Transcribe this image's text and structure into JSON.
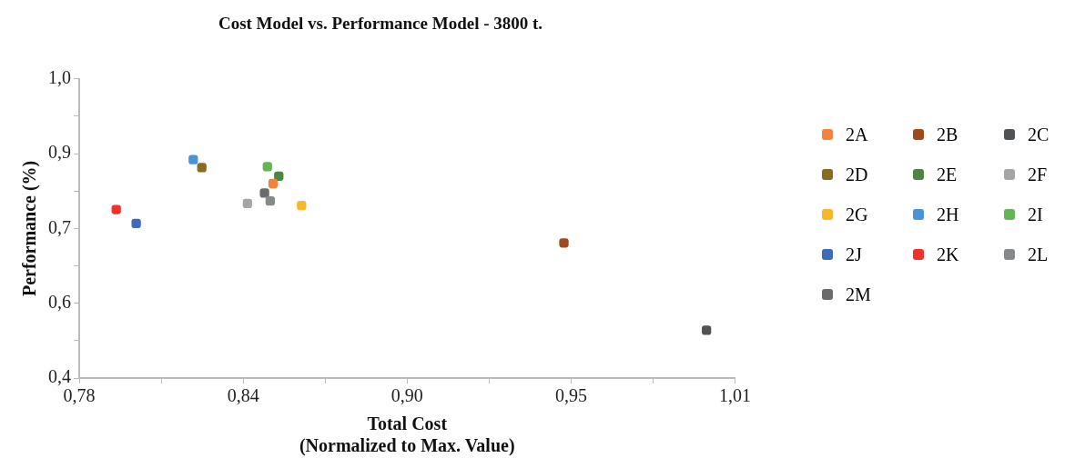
{
  "chart_data": {
    "type": "scatter",
    "title": "Cost Model vs. Performance Model - 3800 t.",
    "xlabel": "Total Cost\n(Normalized to Max. Value)",
    "ylabel": "Performance (%)",
    "xlim": [
      0.78,
      1.01
    ],
    "xticks": [
      {
        "value": 0.78,
        "label": "0,78"
      },
      {
        "value": 0.80875,
        "label": null
      },
      {
        "value": 0.8375,
        "label": "0,84"
      },
      {
        "value": 0.86625,
        "label": null
      },
      {
        "value": 0.895,
        "label": "0,90"
      },
      {
        "value": 0.92375,
        "label": null
      },
      {
        "value": 0.9525,
        "label": "0,95"
      },
      {
        "value": 0.98125,
        "label": null
      },
      {
        "value": 1.01,
        "label": "1,01"
      }
    ],
    "ylim": [
      0.4,
      1.0
    ],
    "yticks": [
      {
        "value": 0.4,
        "label": "0,4"
      },
      {
        "value": 0.475,
        "label": null
      },
      {
        "value": 0.55,
        "label": "0,6"
      },
      {
        "value": 0.625,
        "label": null
      },
      {
        "value": 0.7,
        "label": "0,7"
      },
      {
        "value": 0.775,
        "label": null
      },
      {
        "value": 0.85,
        "label": "0,9"
      },
      {
        "value": 0.925,
        "label": null
      },
      {
        "value": 1.0,
        "label": "1,0"
      }
    ],
    "marker": "square",
    "grid": false,
    "legend": "right",
    "series": [
      {
        "name": "2A",
        "color": "#f5813d",
        "x": [
          0.848
        ],
        "values": [
          0.79
        ]
      },
      {
        "name": "2B",
        "color": "#9e4a1f",
        "x": [
          0.95
        ],
        "values": [
          0.671
        ]
      },
      {
        "name": "2C",
        "color": "#505254",
        "x": [
          1.0
        ],
        "values": [
          0.496
        ]
      },
      {
        "name": "2D",
        "color": "#8a6b22",
        "x": [
          0.823
        ],
        "values": [
          0.822
        ]
      },
      {
        "name": "2E",
        "color": "#4e8540",
        "x": [
          0.85
        ],
        "values": [
          0.805
        ]
      },
      {
        "name": "2F",
        "color": "#a4a5a7",
        "x": [
          0.839
        ],
        "values": [
          0.75
        ]
      },
      {
        "name": "2G",
        "color": "#f8b72a",
        "x": [
          0.858
        ],
        "values": [
          0.746
        ]
      },
      {
        "name": "2H",
        "color": "#4a94d6",
        "x": [
          0.82
        ],
        "values": [
          0.838
        ]
      },
      {
        "name": "2I",
        "color": "#64b556",
        "x": [
          0.846
        ],
        "values": [
          0.824
        ]
      },
      {
        "name": "2J",
        "color": "#3f6bb8",
        "x": [
          0.8
        ],
        "values": [
          0.71
        ]
      },
      {
        "name": "2K",
        "color": "#ef322c",
        "x": [
          0.793
        ],
        "values": [
          0.738
        ]
      },
      {
        "name": "2L",
        "color": "#88898b",
        "x": [
          0.847
        ],
        "values": [
          0.755
        ]
      },
      {
        "name": "2M",
        "color": "#6a6b6d",
        "x": [
          0.845
        ],
        "values": [
          0.771
        ]
      }
    ]
  }
}
